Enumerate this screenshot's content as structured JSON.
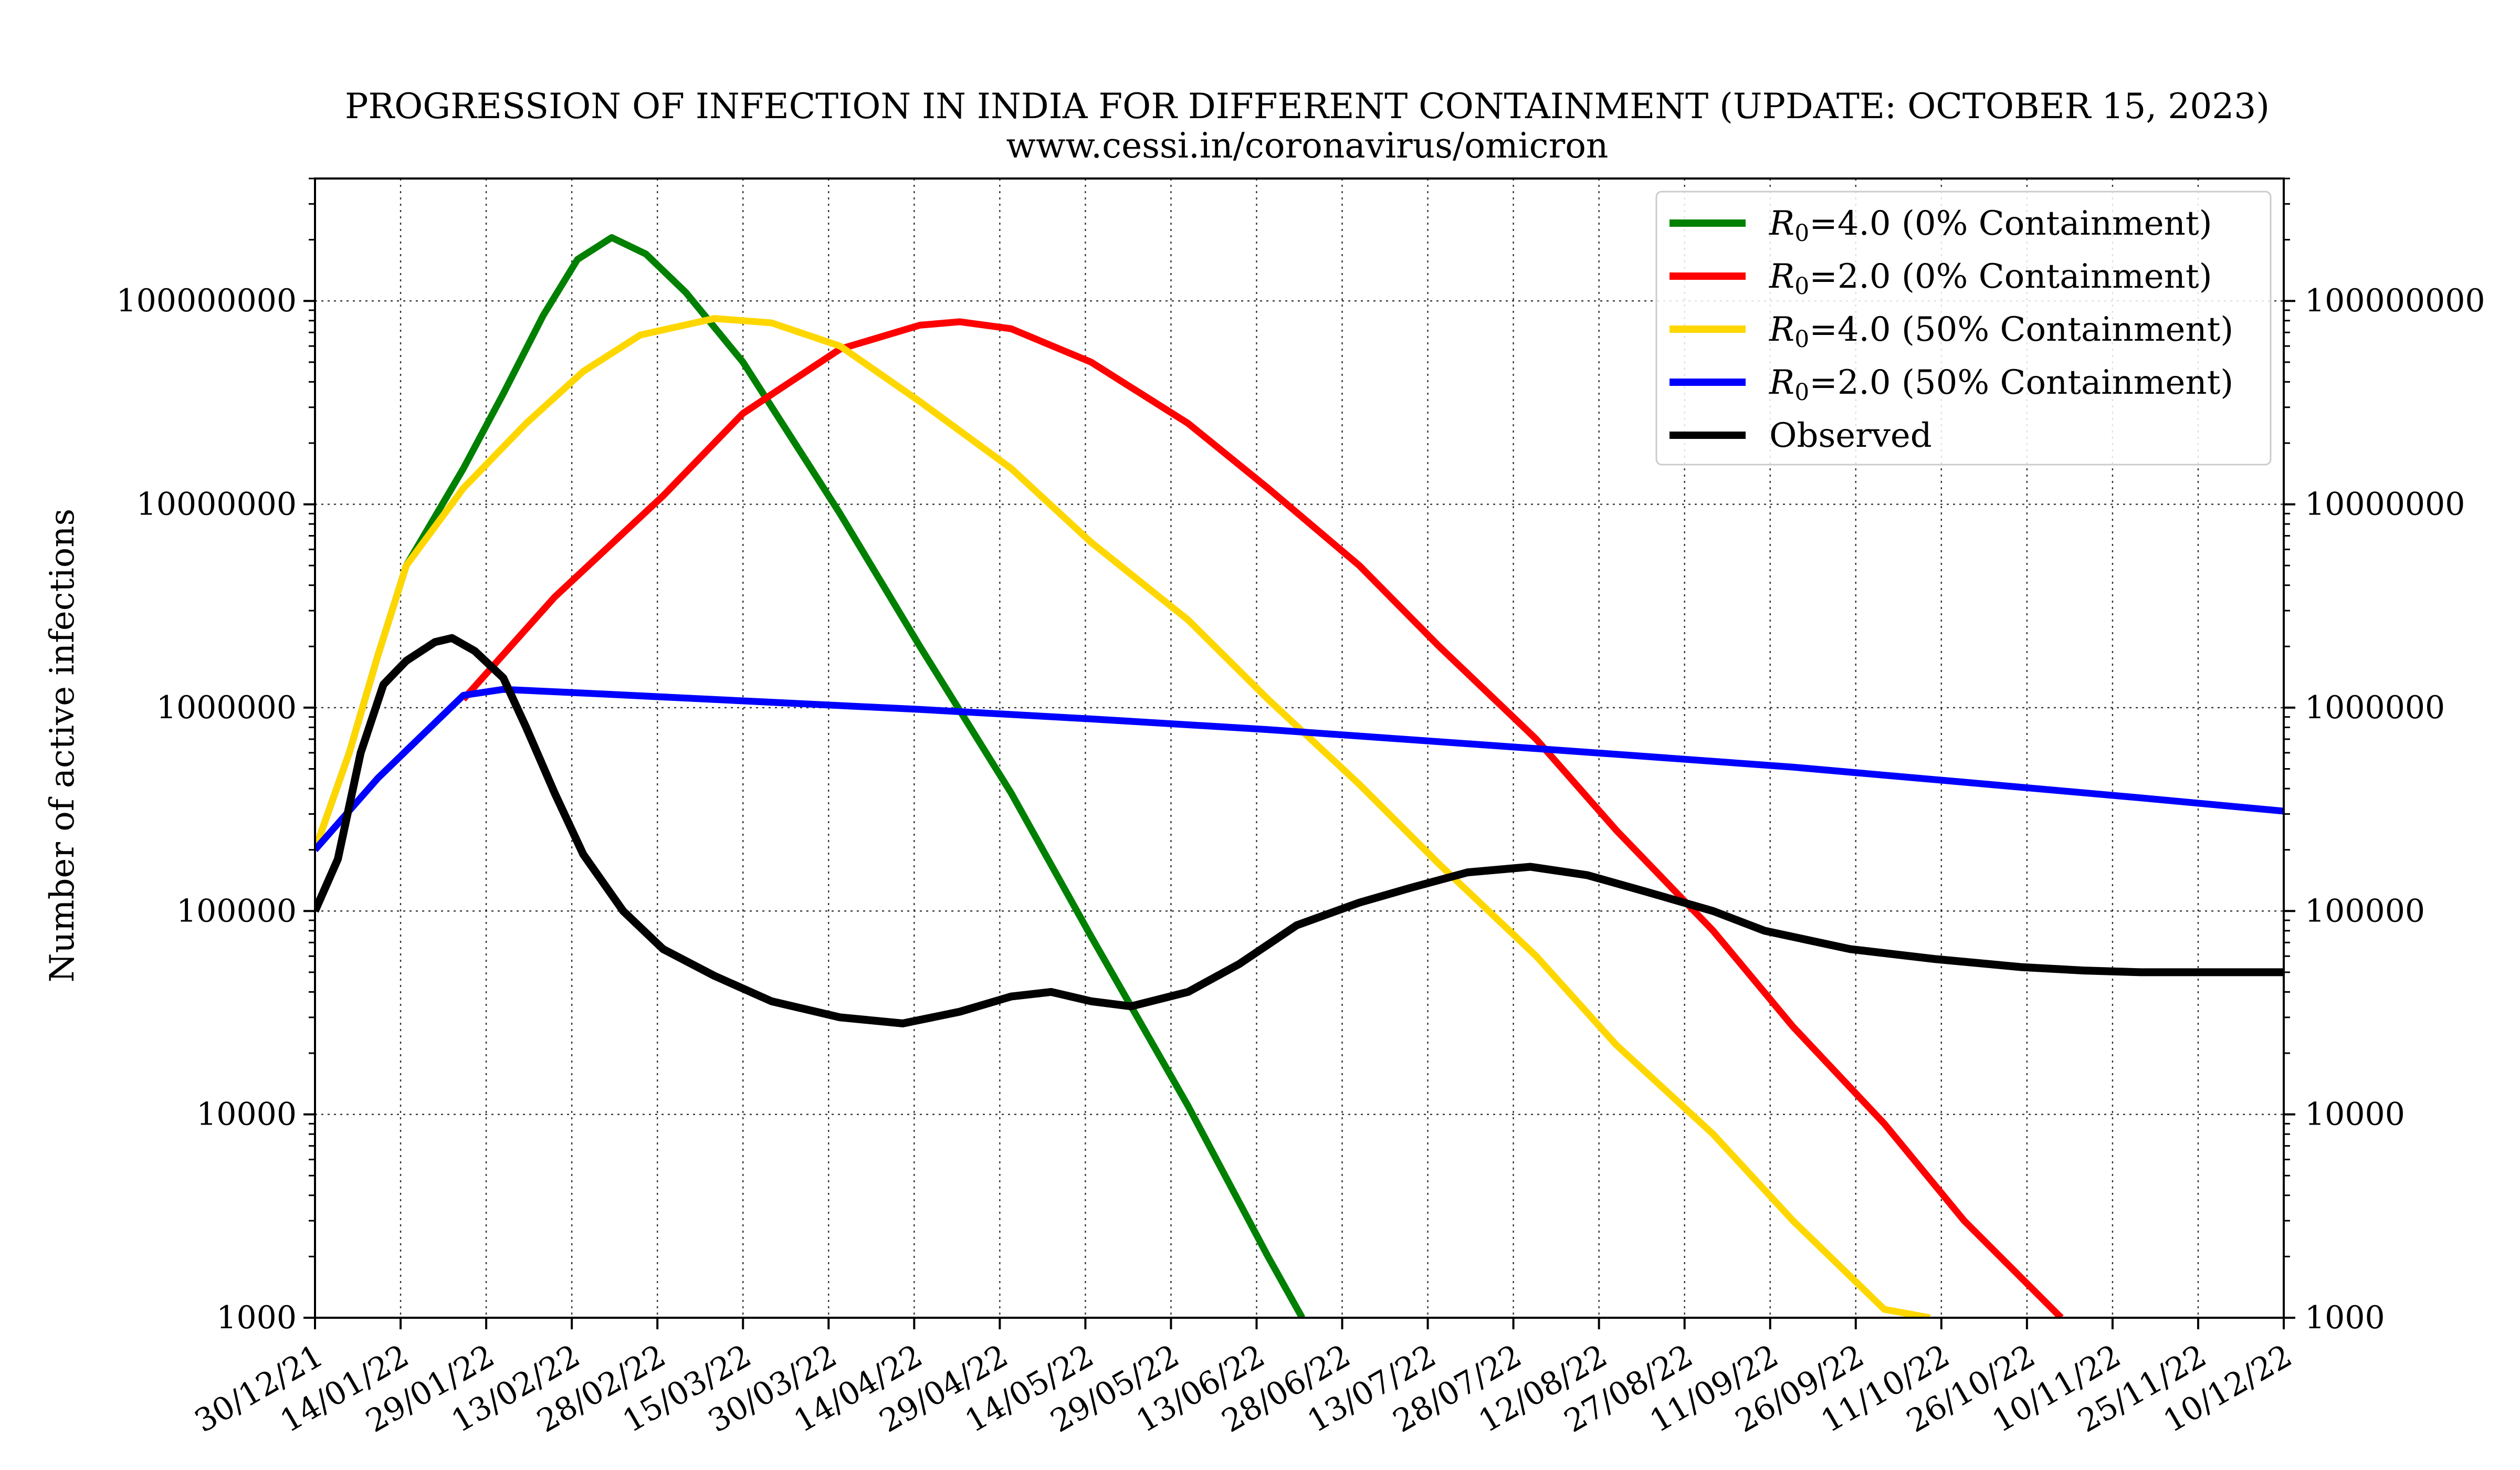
{
  "chart_data": {
    "type": "line",
    "title": "PROGRESSION OF INFECTION IN INDIA FOR DIFFERENT CONTAINMENT (UPDATE: OCTOBER 15, 2023)",
    "subtitle": "www.cessi.in/coronavirus/omicron",
    "xlabel": "",
    "ylabel": "Number of active infections",
    "y_scale": "log",
    "ylim": [
      1000,
      400000000
    ],
    "xlim": [
      "2021-12-30",
      "2022-12-10"
    ],
    "grid": true,
    "legend_position": "top-right",
    "x_tick_labels": [
      "30/12/21",
      "14/01/22",
      "29/01/22",
      "13/02/22",
      "28/02/22",
      "15/03/22",
      "30/03/22",
      "14/04/22",
      "29/04/22",
      "14/05/22",
      "29/05/22",
      "13/06/22",
      "28/06/22",
      "13/07/22",
      "28/07/22",
      "12/08/22",
      "27/08/22",
      "11/09/22",
      "26/09/22",
      "11/10/22",
      "26/10/22",
      "10/11/22",
      "25/11/22",
      "10/12/22"
    ],
    "x_tick_dates": [
      "2021-12-30",
      "2022-01-14",
      "2022-01-29",
      "2022-02-13",
      "2022-02-28",
      "2022-03-15",
      "2022-03-30",
      "2022-04-14",
      "2022-04-29",
      "2022-05-14",
      "2022-05-29",
      "2022-06-13",
      "2022-06-28",
      "2022-07-13",
      "2022-07-28",
      "2022-08-12",
      "2022-08-27",
      "2022-09-11",
      "2022-09-26",
      "2022-10-11",
      "2022-10-26",
      "2022-11-10",
      "2022-11-25",
      "2022-12-10"
    ],
    "y_ticks": [
      1000,
      10000,
      100000,
      1000000,
      10000000,
      100000000
    ],
    "y_tick_labels": [
      "1000",
      "10000",
      "100000",
      "1000000",
      "10000000",
      "100000000"
    ],
    "series": [
      {
        "name": "$R_0$=4.0 (0% Containment)",
        "legend_parts": [
          "R",
          "0",
          "=4.0 (0% Containment)"
        ],
        "color": "#008000",
        "points": [
          [
            "2021-12-30",
            200000
          ],
          [
            "2022-01-05",
            600000
          ],
          [
            "2022-01-10",
            1800000
          ],
          [
            "2022-01-15",
            5000000
          ],
          [
            "2022-01-25",
            15000000
          ],
          [
            "2022-02-01",
            35000000
          ],
          [
            "2022-02-08",
            85000000
          ],
          [
            "2022-02-14",
            160000000
          ],
          [
            "2022-02-20",
            205000000
          ],
          [
            "2022-02-26",
            170000000
          ],
          [
            "2022-03-05",
            110000000
          ],
          [
            "2022-03-15",
            50000000
          ],
          [
            "2022-04-01",
            9000000
          ],
          [
            "2022-04-15",
            2000000
          ],
          [
            "2022-05-01",
            380000
          ],
          [
            "2022-05-15",
            75000
          ],
          [
            "2022-06-01",
            11000
          ],
          [
            "2022-06-15",
            2000
          ],
          [
            "2022-06-21",
            1000
          ]
        ]
      },
      {
        "name": "$R_0$=2.0 (0% Containment)",
        "legend_parts": [
          "R",
          "0",
          "=2.0 (0% Containment)"
        ],
        "color": "#ff0000",
        "points": [
          [
            "2022-01-25",
            1100000
          ],
          [
            "2022-02-10",
            3500000
          ],
          [
            "2022-03-01",
            11000000
          ],
          [
            "2022-03-15",
            28000000
          ],
          [
            "2022-04-01",
            58000000
          ],
          [
            "2022-04-15",
            76000000
          ],
          [
            "2022-04-22",
            79000000
          ],
          [
            "2022-05-01",
            73000000
          ],
          [
            "2022-05-15",
            50000000
          ],
          [
            "2022-06-01",
            25000000
          ],
          [
            "2022-06-15",
            12000000
          ],
          [
            "2022-07-01",
            5000000
          ],
          [
            "2022-07-15",
            2000000
          ],
          [
            "2022-08-01",
            700000
          ],
          [
            "2022-08-15",
            250000
          ],
          [
            "2022-09-01",
            80000
          ],
          [
            "2022-09-15",
            27000
          ],
          [
            "2022-10-01",
            9000
          ],
          [
            "2022-10-15",
            3000
          ],
          [
            "2022-11-01",
            1000
          ]
        ]
      },
      {
        "name": "$R_0$=4.0 (50% Containment)",
        "legend_parts": [
          "R",
          "0",
          "=4.0 (50% Containment)"
        ],
        "color": "#ffd700",
        "points": [
          [
            "2021-12-30",
            200000
          ],
          [
            "2022-01-05",
            600000
          ],
          [
            "2022-01-10",
            1800000
          ],
          [
            "2022-01-15",
            5000000
          ],
          [
            "2022-01-25",
            12000000
          ],
          [
            "2022-02-05",
            25000000
          ],
          [
            "2022-02-15",
            45000000
          ],
          [
            "2022-02-25",
            68000000
          ],
          [
            "2022-03-10",
            82000000
          ],
          [
            "2022-03-20",
            78000000
          ],
          [
            "2022-04-01",
            60000000
          ],
          [
            "2022-04-15",
            32000000
          ],
          [
            "2022-05-01",
            15000000
          ],
          [
            "2022-05-15",
            6500000
          ],
          [
            "2022-06-01",
            2700000
          ],
          [
            "2022-06-15",
            1100000
          ],
          [
            "2022-07-01",
            420000
          ],
          [
            "2022-07-15",
            170000
          ],
          [
            "2022-08-01",
            60000
          ],
          [
            "2022-08-15",
            22000
          ],
          [
            "2022-09-01",
            8000
          ],
          [
            "2022-09-15",
            3000
          ],
          [
            "2022-10-01",
            1100
          ],
          [
            "2022-10-09",
            1000
          ]
        ]
      },
      {
        "name": "$R_0$=2.0 (50% Containment)",
        "legend_parts": [
          "R",
          "0",
          "=2.0 (50% Containment)"
        ],
        "color": "#0000ff",
        "points": [
          [
            "2021-12-30",
            200000
          ],
          [
            "2022-01-10",
            450000
          ],
          [
            "2022-01-25",
            1150000
          ],
          [
            "2022-02-01",
            1230000
          ],
          [
            "2022-02-15",
            1180000
          ],
          [
            "2022-03-15",
            1080000
          ],
          [
            "2022-04-15",
            980000
          ],
          [
            "2022-05-15",
            880000
          ],
          [
            "2022-06-15",
            780000
          ],
          [
            "2022-07-15",
            680000
          ],
          [
            "2022-08-15",
            590000
          ],
          [
            "2022-09-15",
            510000
          ],
          [
            "2022-10-15",
            430000
          ],
          [
            "2022-11-15",
            360000
          ],
          [
            "2022-12-10",
            310000
          ]
        ]
      },
      {
        "name": "Observed",
        "color": "#000000",
        "points": [
          [
            "2021-12-30",
            100000
          ],
          [
            "2022-01-03",
            180000
          ],
          [
            "2022-01-07",
            600000
          ],
          [
            "2022-01-11",
            1300000
          ],
          [
            "2022-01-15",
            1700000
          ],
          [
            "2022-01-20",
            2100000
          ],
          [
            "2022-01-23",
            2200000
          ],
          [
            "2022-01-27",
            1900000
          ],
          [
            "2022-02-01",
            1400000
          ],
          [
            "2022-02-05",
            800000
          ],
          [
            "2022-02-10",
            380000
          ],
          [
            "2022-02-15",
            190000
          ],
          [
            "2022-02-22",
            100000
          ],
          [
            "2022-03-01",
            65000
          ],
          [
            "2022-03-10",
            48000
          ],
          [
            "2022-03-20",
            36000
          ],
          [
            "2022-04-01",
            30000
          ],
          [
            "2022-04-12",
            28000
          ],
          [
            "2022-04-22",
            32000
          ],
          [
            "2022-05-01",
            38000
          ],
          [
            "2022-05-08",
            40000
          ],
          [
            "2022-05-15",
            36000
          ],
          [
            "2022-05-22",
            34000
          ],
          [
            "2022-06-01",
            40000
          ],
          [
            "2022-06-10",
            55000
          ],
          [
            "2022-06-20",
            85000
          ],
          [
            "2022-07-01",
            110000
          ],
          [
            "2022-07-10",
            130000
          ],
          [
            "2022-07-20",
            155000
          ],
          [
            "2022-07-31",
            165000
          ],
          [
            "2022-08-10",
            150000
          ],
          [
            "2022-08-20",
            125000
          ],
          [
            "2022-09-01",
            100000
          ],
          [
            "2022-09-10",
            80000
          ],
          [
            "2022-09-25",
            65000
          ],
          [
            "2022-10-10",
            58000
          ],
          [
            "2022-10-25",
            53000
          ],
          [
            "2022-11-05",
            51000
          ],
          [
            "2022-11-15",
            50000
          ],
          [
            "2022-12-10",
            50000
          ]
        ]
      }
    ]
  }
}
